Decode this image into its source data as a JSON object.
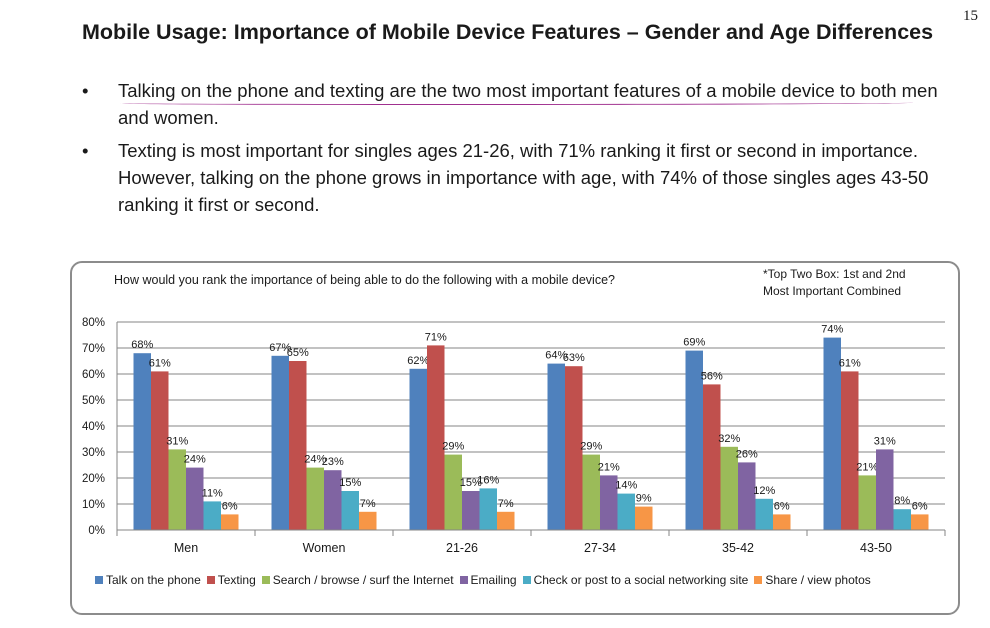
{
  "page_number": "15",
  "title": "Mobile Usage:  Importance of Mobile Device Features – Gender and Age Differences",
  "bullets": [
    "Talking on the phone and texting are the two most important features of a mobile device to both men and women.",
    "Texting is most important for singles ages 21-26, with 71% ranking it first or second in importance.  However, talking on the phone grows in importance with age, with 74% of those singles ages 43-50 ranking it first or second."
  ],
  "chart_question": "How would you rank the importance of being able to do the following with a mobile device?",
  "chart_note_line1": "*Top Two Box:  1st and 2nd",
  "chart_note_line2": "Most Important Combined",
  "chart_data": {
    "type": "bar",
    "categories": [
      "Men",
      "Women",
      "21-26",
      "27-34",
      "35-42",
      "43-50"
    ],
    "ylim": [
      0,
      80
    ],
    "yticks": [
      0,
      10,
      20,
      30,
      40,
      50,
      60,
      70,
      80
    ],
    "ytick_labels": [
      "0%",
      "10%",
      "20%",
      "30%",
      "40%",
      "50%",
      "60%",
      "70%",
      "80%"
    ],
    "grid": true,
    "legend_position": "bottom",
    "series": [
      {
        "name": "Talk on the phone",
        "color": "#4f81bd",
        "values": [
          68,
          67,
          62,
          64,
          69,
          74
        ],
        "labels": [
          "68%",
          "67%",
          "62%",
          "64%",
          "69%",
          "74%"
        ]
      },
      {
        "name": "Texting",
        "color": "#c0504d",
        "values": [
          61,
          65,
          71,
          63,
          56,
          61
        ],
        "labels": [
          "61%",
          "65%",
          "71%",
          "63%",
          "56%",
          "61%"
        ]
      },
      {
        "name": "Search / browse / surf the Internet",
        "color": "#9bbb59",
        "values": [
          31,
          24,
          29,
          29,
          32,
          21
        ],
        "labels": [
          "31%",
          "24%",
          "29%",
          "29%",
          "32%",
          "21%"
        ]
      },
      {
        "name": "Emailing",
        "color": "#8064a2",
        "values": [
          24,
          23,
          15,
          21,
          26,
          31
        ],
        "labels": [
          "24%",
          "23%",
          "15%",
          "21%",
          "26%",
          "31%"
        ]
      },
      {
        "name": "Check or post to a social networking site",
        "color": "#4bacc6",
        "values": [
          11,
          15,
          16,
          14,
          12,
          8
        ],
        "labels": [
          "11%",
          "15%",
          "16%",
          "14%",
          "12%",
          "8%"
        ]
      },
      {
        "name": "Share / view photos",
        "color": "#f79646",
        "values": [
          6,
          7,
          7,
          9,
          6,
          6
        ],
        "labels": [
          "6%",
          "7%",
          "7%",
          "9%",
          "6%",
          "6%"
        ]
      }
    ]
  }
}
